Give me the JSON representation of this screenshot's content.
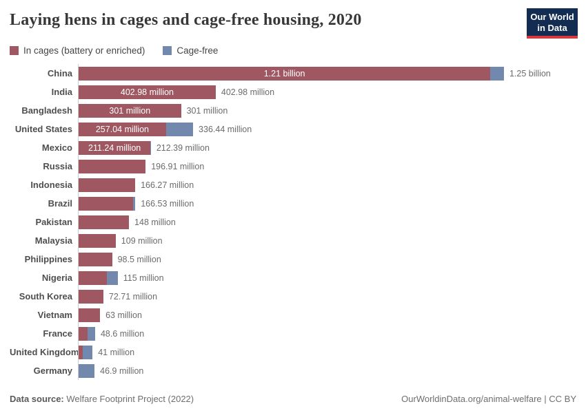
{
  "header": {
    "title": "Laying hens in cages and cage-free housing, 2020",
    "logo_line1": "Our World",
    "logo_line2": "in Data"
  },
  "colors": {
    "in_cages": "#9f5861",
    "cage_free": "#7289ad",
    "logo_bg": "#132c52",
    "logo_accent": "#d7383d"
  },
  "chart_data": {
    "type": "bar",
    "orientation": "horizontal",
    "stacked": true,
    "title": "Laying hens in cages and cage-free housing, 2020",
    "value_unit": "millions of hens",
    "xmax_millions": 1250,
    "grid": false,
    "legend_position": "top-left",
    "series_keys": [
      "in_cages",
      "cage_free"
    ],
    "series": [
      {
        "key": "in_cages",
        "name": "In cages (battery or enriched)",
        "color": "#9f5861"
      },
      {
        "key": "cage_free",
        "name": "Cage-free",
        "color": "#7289ad"
      }
    ],
    "rows": [
      {
        "country": "China",
        "in_cages": 1210,
        "cage_free": 40,
        "label_in_bar": "1.21 billion",
        "label_total": "1.25 billion"
      },
      {
        "country": "India",
        "in_cages": 402.98,
        "cage_free": 0,
        "label_in_bar": "402.98 million",
        "label_total": "402.98 million"
      },
      {
        "country": "Bangladesh",
        "in_cages": 301,
        "cage_free": 0,
        "label_in_bar": "301 million",
        "label_total": "301 million"
      },
      {
        "country": "United States",
        "in_cages": 257.04,
        "cage_free": 79.4,
        "label_in_bar": "257.04 million",
        "label_total": "336.44 million"
      },
      {
        "country": "Mexico",
        "in_cages": 211.24,
        "cage_free": 1.15,
        "label_in_bar": "211.24 million",
        "label_total": "212.39 million"
      },
      {
        "country": "Russia",
        "in_cages": 196.91,
        "cage_free": 0,
        "label_in_bar": null,
        "label_total": "196.91 million"
      },
      {
        "country": "Indonesia",
        "in_cages": 166.27,
        "cage_free": 0,
        "label_in_bar": null,
        "label_total": "166.27 million"
      },
      {
        "country": "Brazil",
        "in_cages": 160,
        "cage_free": 6.53,
        "label_in_bar": null,
        "label_total": "166.53 million"
      },
      {
        "country": "Pakistan",
        "in_cages": 148,
        "cage_free": 0,
        "label_in_bar": null,
        "label_total": "148 million"
      },
      {
        "country": "Malaysia",
        "in_cages": 109,
        "cage_free": 0,
        "label_in_bar": null,
        "label_total": "109 million"
      },
      {
        "country": "Philippines",
        "in_cages": 98.5,
        "cage_free": 0,
        "label_in_bar": null,
        "label_total": "98.5 million"
      },
      {
        "country": "Nigeria",
        "in_cages": 84,
        "cage_free": 31,
        "label_in_bar": null,
        "label_total": "115 million"
      },
      {
        "country": "South Korea",
        "in_cages": 72.71,
        "cage_free": 0,
        "label_in_bar": null,
        "label_total": "72.71 million"
      },
      {
        "country": "Vietnam",
        "in_cages": 63,
        "cage_free": 0,
        "label_in_bar": null,
        "label_total": "63 million"
      },
      {
        "country": "France",
        "in_cages": 26,
        "cage_free": 22.6,
        "label_in_bar": null,
        "label_total": "48.6 million"
      },
      {
        "country": "United Kingdom",
        "in_cages": 12,
        "cage_free": 29,
        "label_in_bar": null,
        "label_total": "41 million"
      },
      {
        "country": "Germany",
        "in_cages": 0,
        "cage_free": 46.9,
        "label_in_bar": null,
        "label_total": "46.9 million"
      }
    ]
  },
  "footer": {
    "datasource_label": "Data source:",
    "datasource_value": "Welfare Footprint Project (2022)",
    "credit": "OurWorldinData.org/animal-welfare | CC BY"
  }
}
